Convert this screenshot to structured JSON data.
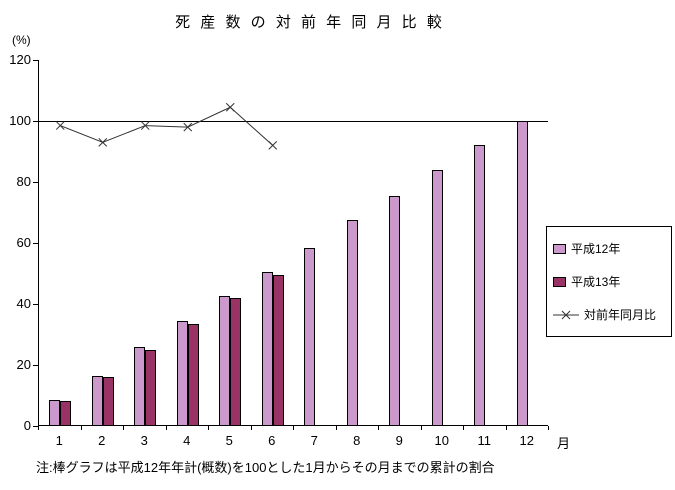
{
  "chart_data": {
    "type": "bar+line",
    "title": "死 産 数 の 対 前 年 同 月 比 較",
    "y_axis_unit": "(%)",
    "x_axis_suffix": "月",
    "categories": [
      1,
      2,
      3,
      4,
      5,
      6,
      7,
      8,
      9,
      10,
      11,
      12
    ],
    "series": [
      {
        "name": "平成12年",
        "type": "bar",
        "color": "#cc99cc",
        "values": [
          8.5,
          16.5,
          26,
          34.5,
          42.5,
          50.5,
          58.5,
          67.5,
          75.5,
          84,
          92,
          100
        ]
      },
      {
        "name": "平成13年",
        "type": "bar",
        "color": "#993366",
        "values": [
          8.2,
          16,
          25,
          33.5,
          42,
          49.5,
          null,
          null,
          null,
          null,
          null,
          null
        ]
      },
      {
        "name": "対前年同月比",
        "type": "line",
        "color": "#333333",
        "marker": "x",
        "values": [
          98.5,
          93,
          98.5,
          98,
          104.5,
          92,
          null,
          null,
          null,
          null,
          null,
          null
        ]
      }
    ],
    "ylim": [
      0,
      120
    ],
    "yticks": [
      0,
      20,
      40,
      60,
      80,
      100,
      120
    ],
    "reference_line": 100,
    "grid": "off",
    "legend_position": "right",
    "note": "注:棒グラフは平成12年年計(概数)を100とした1月からその月までの累計の割合"
  }
}
